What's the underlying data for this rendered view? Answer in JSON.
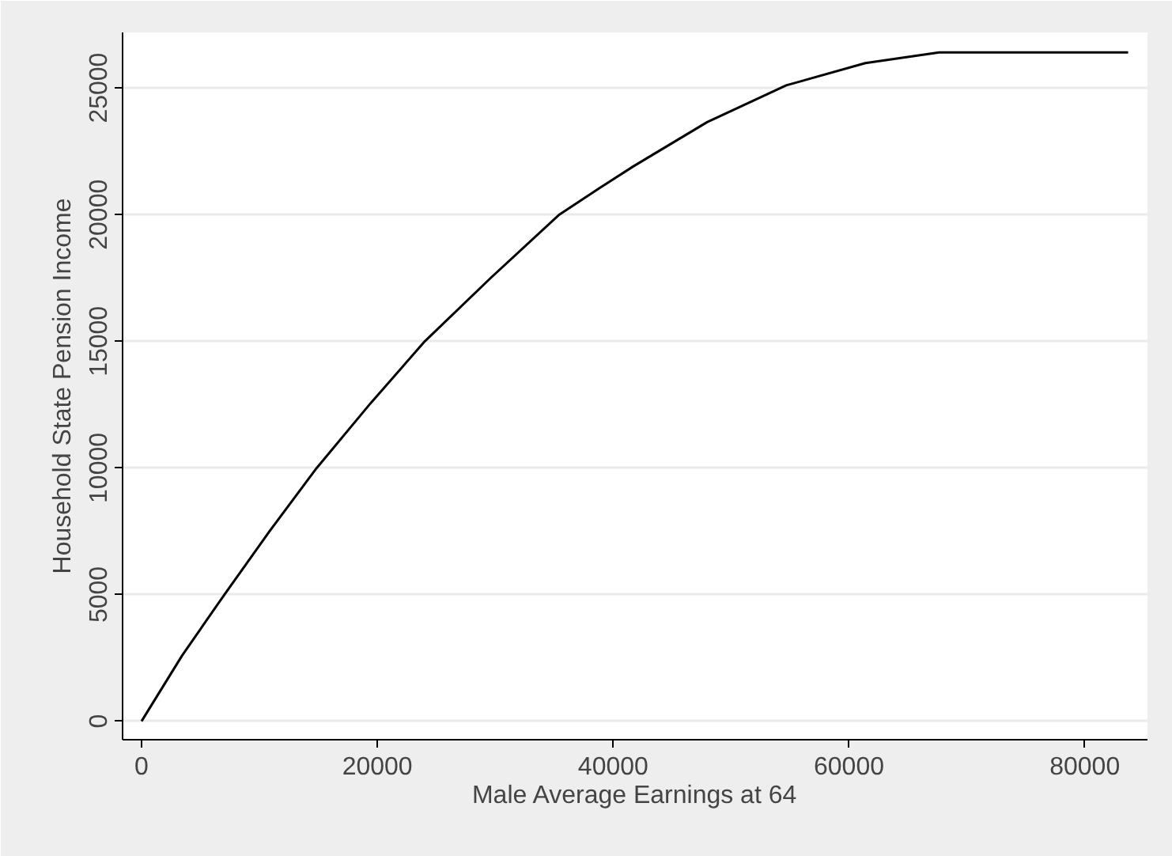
{
  "chart_data": {
    "type": "line",
    "xlabel": "Male Average Earnings at 64",
    "ylabel": "Household State Pension Income",
    "x": [
      0,
      3450,
      7030,
      10860,
      14860,
      19330,
      24030,
      29620,
      35440,
      39020,
      41700,
      47970,
      54680,
      61390,
      67650,
      83680
    ],
    "series": [
      {
        "color": "#000000",
        "values": [
          0,
          2600,
          5000,
          7500,
          10000,
          12500,
          15000,
          17500,
          20000,
          21100,
          21900,
          23650,
          25100,
          25980,
          26400,
          26400
        ]
      }
    ],
    "xlim": [
      -1610,
      85320
    ],
    "ylim": [
      -730,
      27190
    ],
    "xticks": [
      0,
      20000,
      40000,
      60000,
      80000
    ],
    "yticks": [
      0,
      5000,
      10000,
      15000,
      20000,
      25000
    ],
    "grid": "y",
    "marker": "none",
    "line_style": "solid"
  }
}
